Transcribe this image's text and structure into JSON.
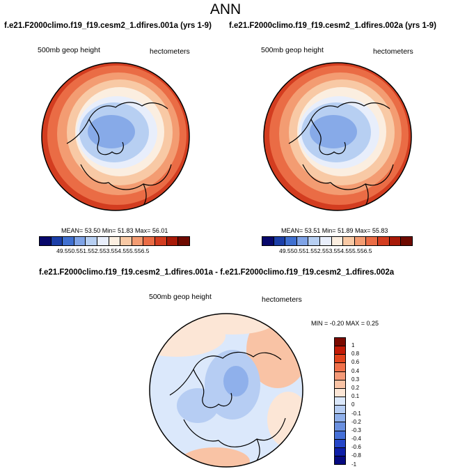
{
  "title": "ANN",
  "panels": [
    {
      "case_title": "f.e21.F2000climo.f19_f19.cesm2_1.dfires.001a (yrs 1-9)",
      "variable_label": "500mb geop height",
      "units_label": "hectometers",
      "stats": "MEAN=  53.50  Min=  51.83  Max=  56.01"
    },
    {
      "case_title": "f.e21.F2000climo.f19_f19.cesm2_1.dfires.002a (yrs 1-9)",
      "variable_label": "500mb geop height",
      "units_label": "hectometers",
      "stats": "MEAN=  53.51  Min=  51.89  Max=  55.83"
    }
  ],
  "abs_colorbar": {
    "colors": [
      "#08086b",
      "#1c3fa8",
      "#4070d0",
      "#7fa3e6",
      "#b7cff2",
      "#e8eefb",
      "#fbeee0",
      "#f8c9a5",
      "#f39c72",
      "#ea6c45",
      "#d33d20",
      "#a81a08",
      "#6e0a00"
    ],
    "labels": [
      "49.5",
      "50.5",
      "51.5",
      "52.5",
      "53.5",
      "54.5",
      "55.5",
      "56.5"
    ]
  },
  "diff": {
    "case_title": "f.e21.F2000climo.f19_f19.cesm2_1.dfires.001a - f.e21.F2000climo.f19_f19.cesm2_1.dfires.002a",
    "variable_label": "500mb geop height",
    "units_label": "hectometers",
    "stats": "MIN = -0.20 MAX =  0.25",
    "colorbar_colors": [
      "#7a0a00",
      "#c21a06",
      "#e2431c",
      "#f0704a",
      "#f59a78",
      "#f9c3a5",
      "#fce6d6",
      "#dbe8fb",
      "#b6cdf3",
      "#8fb0eb",
      "#6a90e0",
      "#4570d8",
      "#2546c8",
      "#0e1fa8",
      "#060a80"
    ],
    "colorbar_labels": [
      "1",
      "0.8",
      "0.6",
      "0.4",
      "0.3",
      "0.2",
      "0.1",
      "0",
      "-0.1",
      "-0.2",
      "-0.3",
      "-0.4",
      "-0.6",
      "-0.8",
      "-1"
    ]
  }
}
